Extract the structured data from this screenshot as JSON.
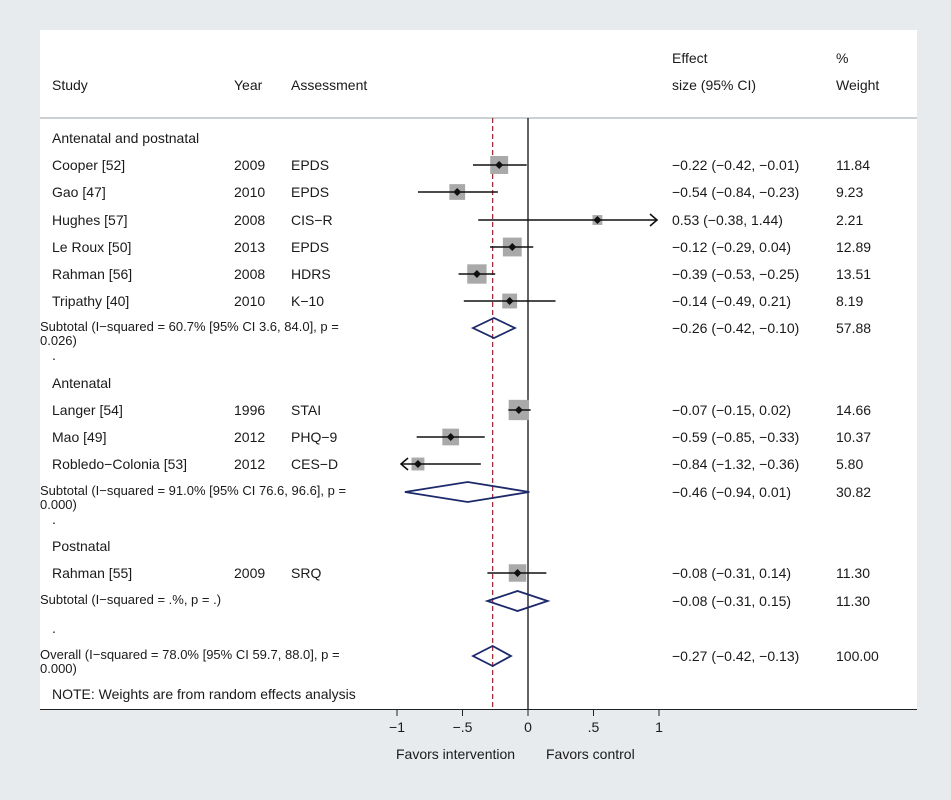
{
  "header": {
    "study": "Study",
    "year": "Year",
    "assessment": "Assessment",
    "effect_line1": "Effect",
    "effect_line2": "size (95% CI)",
    "weight_line1": "%",
    "weight_line2": "Weight"
  },
  "note": "NOTE: Weights are from random effects analysis",
  "x_labels": {
    "left": "Favors intervention",
    "right": "Favors control"
  },
  "chart_data": {
    "type": "forest",
    "xlim": [
      -1,
      1
    ],
    "xticks": [
      -1,
      -0.5,
      0,
      0.5,
      1
    ],
    "xtick_labels": [
      "−1",
      "−.5",
      "0",
      ".5",
      "1"
    ],
    "null_line": 0,
    "overall_line": -0.27,
    "rows": [
      {
        "kind": "group",
        "label": "Antenatal and postnatal"
      },
      {
        "kind": "study",
        "study": "Cooper [52]",
        "year": "2009",
        "assessment": "EPDS",
        "es": -0.22,
        "lo": -0.42,
        "hi": -0.01,
        "ci_text": "−0.22 (−0.42, −0.01)",
        "weight": "11.84"
      },
      {
        "kind": "study",
        "study": "Gao [47]",
        "year": "2010",
        "assessment": "EPDS",
        "es": -0.54,
        "lo": -0.84,
        "hi": -0.23,
        "ci_text": "−0.54 (−0.84, −0.23)",
        "weight": "9.23"
      },
      {
        "kind": "study",
        "study": "Hughes [57]",
        "year": "2008",
        "assessment": "CIS−R",
        "es": 0.53,
        "lo": -0.38,
        "hi": 1.44,
        "ci_text": "0.53 (−0.38, 1.44)",
        "weight": "2.21"
      },
      {
        "kind": "study",
        "study": "Le Roux [50]",
        "year": "2013",
        "assessment": "EPDS",
        "es": -0.12,
        "lo": -0.29,
        "hi": 0.04,
        "ci_text": "−0.12 (−0.29, 0.04)",
        "weight": "12.89"
      },
      {
        "kind": "study",
        "study": "Rahman [56]",
        "year": "2008",
        "assessment": "HDRS",
        "es": -0.39,
        "lo": -0.53,
        "hi": -0.25,
        "ci_text": "−0.39 (−0.53, −0.25)",
        "weight": "13.51"
      },
      {
        "kind": "study",
        "study": "Tripathy [40]",
        "year": "2010",
        "assessment": "K−10",
        "es": -0.14,
        "lo": -0.49,
        "hi": 0.21,
        "ci_text": "−0.14 (−0.49, 0.21)",
        "weight": "8.19"
      },
      {
        "kind": "subtotal",
        "label": "Subtotal  (I−squared = 60.7% [95% CI 3.6, 84.0], p = 0.026)",
        "es": -0.26,
        "lo": -0.42,
        "hi": -0.1,
        "ci_text": "−0.26 (−0.42, −0.10)",
        "weight": "57.88"
      },
      {
        "kind": "dot",
        "label": "."
      },
      {
        "kind": "group",
        "label": "Antenatal"
      },
      {
        "kind": "study",
        "study": "Langer [54]",
        "year": "1996",
        "assessment": "STAI",
        "es": -0.07,
        "lo": -0.15,
        "hi": 0.02,
        "ci_text": "−0.07 (−0.15, 0.02)",
        "weight": "14.66"
      },
      {
        "kind": "study",
        "study": "Mao [49]",
        "year": "2012",
        "assessment": "PHQ−9",
        "es": -0.59,
        "lo": -0.85,
        "hi": -0.33,
        "ci_text": "−0.59 (−0.85, −0.33)",
        "weight": "10.37"
      },
      {
        "kind": "study",
        "study": "Robledo−Colonia [53]",
        "year": "2012",
        "assessment": "CES−D",
        "es": -0.84,
        "lo": -1.32,
        "hi": -0.36,
        "ci_text": "−0.84 (−1.32, −0.36)",
        "weight": "5.80"
      },
      {
        "kind": "subtotal",
        "label": "Subtotal  (I−squared = 91.0% [95% CI 76.6, 96.6], p = 0.000)",
        "es": -0.46,
        "lo": -0.94,
        "hi": 0.01,
        "ci_text": "−0.46 (−0.94, 0.01)",
        "weight": "30.82"
      },
      {
        "kind": "dot",
        "label": "."
      },
      {
        "kind": "group",
        "label": "Postnatal"
      },
      {
        "kind": "study",
        "study": "Rahman [55]",
        "year": "2009",
        "assessment": "SRQ",
        "es": -0.08,
        "lo": -0.31,
        "hi": 0.14,
        "ci_text": "−0.08 (−0.31, 0.14)",
        "weight": "11.30"
      },
      {
        "kind": "subtotal",
        "label": "Subtotal  (I−squared = .%, p = .)",
        "es": -0.08,
        "lo": -0.31,
        "hi": 0.15,
        "ci_text": "−0.08 (−0.31, 0.15)",
        "weight": "11.30"
      },
      {
        "kind": "dot",
        "label": "."
      },
      {
        "kind": "overall",
        "label": "Overall  (I−squared = 78.0% [95% CI 59.7, 88.0], p = 0.000)",
        "es": -0.27,
        "lo": -0.42,
        "hi": -0.13,
        "ci_text": "−0.27 (−0.42, −0.13)",
        "weight": "100.00"
      }
    ]
  }
}
